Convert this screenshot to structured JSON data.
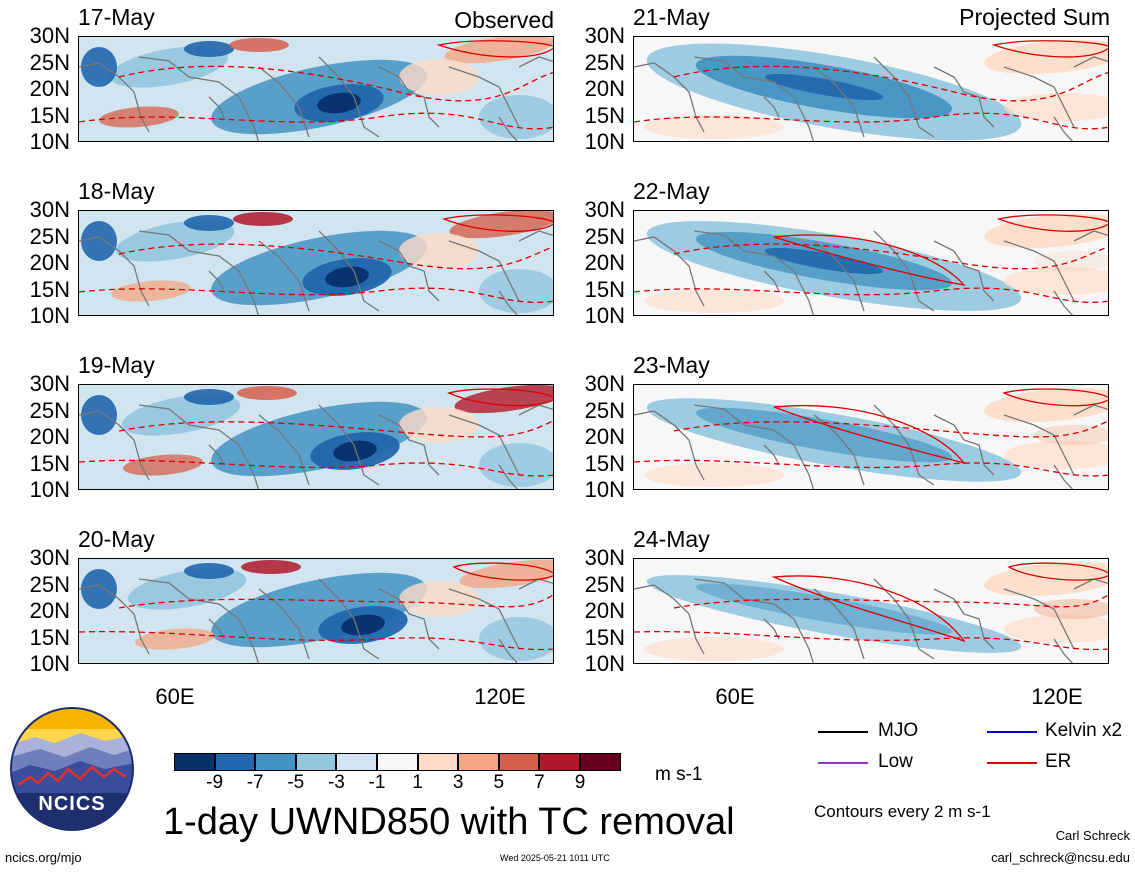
{
  "panels": {
    "observed_tag": "Observed",
    "projected_tag": "Projected Sum",
    "left_dates": [
      "17-May",
      "18-May",
      "19-May",
      "20-May"
    ],
    "right_dates": [
      "21-May",
      "22-May",
      "23-May",
      "24-May"
    ],
    "lat_ticks": [
      "30N",
      "25N",
      "20N",
      "15N",
      "10N"
    ],
    "lon_ticks": [
      "60E",
      "120E"
    ]
  },
  "colorbar": {
    "colors": [
      "#08306b",
      "#2166ac",
      "#4393c3",
      "#92c5de",
      "#d1e5f0",
      "#f7f7f7",
      "#fddbc7",
      "#f4a582",
      "#d6604d",
      "#b2182b",
      "#67001f"
    ],
    "labels": [
      "-9",
      "-7",
      "-5",
      "-3",
      "-1",
      "1",
      "3",
      "5",
      "7",
      "9"
    ],
    "units": "m s-1"
  },
  "legend": {
    "mjo": {
      "label": "MJO",
      "color": "#000000"
    },
    "kelvin": {
      "label": "Kelvin x2",
      "color": "#0000cc"
    },
    "low": {
      "label": "Low",
      "color": "#9933cc"
    },
    "er": {
      "label": "ER",
      "color": "#dd0000"
    },
    "contours": "Contours every 2 m s-1"
  },
  "logo": {
    "text": "NCICS"
  },
  "title": "1-day UWND850 with TC removal",
  "footer": {
    "url": "ncics.org/mjo",
    "timestamp": "Wed 2025-05-21 1011 UTC",
    "author": "Carl Schreck",
    "email": "carl_schreck@ncsu.edu"
  }
}
